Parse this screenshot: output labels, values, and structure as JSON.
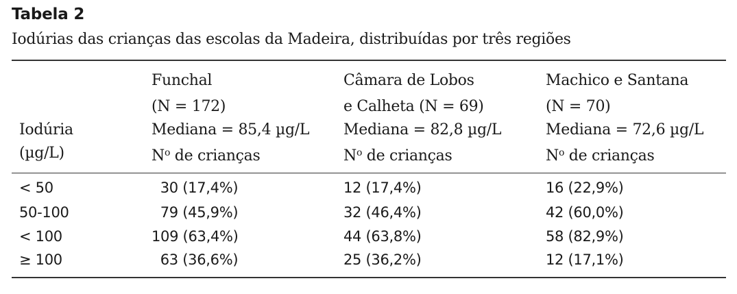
{
  "caption": {
    "title": "Tabela 2",
    "subtitle": "Iodúrias das crianças das escolas da Madeira, distribuídas por três regiões"
  },
  "header": {
    "col0": {
      "line1": "Iodúria",
      "line2": "(µg/L)"
    },
    "col1": {
      "line1": "Funchal",
      "line2": "(N = 172)",
      "line3": "Mediana = 85,4 µg/L",
      "line4_prefix": "N",
      "line4_sup": "o",
      "line4_rest": " de crianças"
    },
    "col2": {
      "line1": "Câmara de Lobos",
      "line2": "e Calheta (N = 69)",
      "line3": "Mediana = 82,8 µg/L",
      "line4_prefix": "N",
      "line4_sup": "o",
      "line4_rest": " de crianças"
    },
    "col3": {
      "line1": "Machico e Santana",
      "line2": "(N = 70)",
      "line3": "Mediana = 72,6 µg/L",
      "line4_prefix": "N",
      "line4_sup": "o",
      "line4_rest": " de crianças"
    }
  },
  "rows": [
    {
      "range": "< 50",
      "funchal": "  30 (17,4%)",
      "camara": "12 (17,4%)",
      "machico": "16 (22,9%)"
    },
    {
      "range": "50-100",
      "funchal": "  79 (45,9%)",
      "camara": "32 (46,4%)",
      "machico": "42 (60,0%)"
    },
    {
      "range": "< 100",
      "funchal": "109 (63,4%)",
      "camara": "44 (63,8%)",
      "machico": "58 (82,9%)"
    },
    {
      "range": "≥ 100",
      "funchal": "  63 (36,6%)",
      "camara": "25 (36,2%)",
      "machico": "12 (17,1%)"
    }
  ]
}
